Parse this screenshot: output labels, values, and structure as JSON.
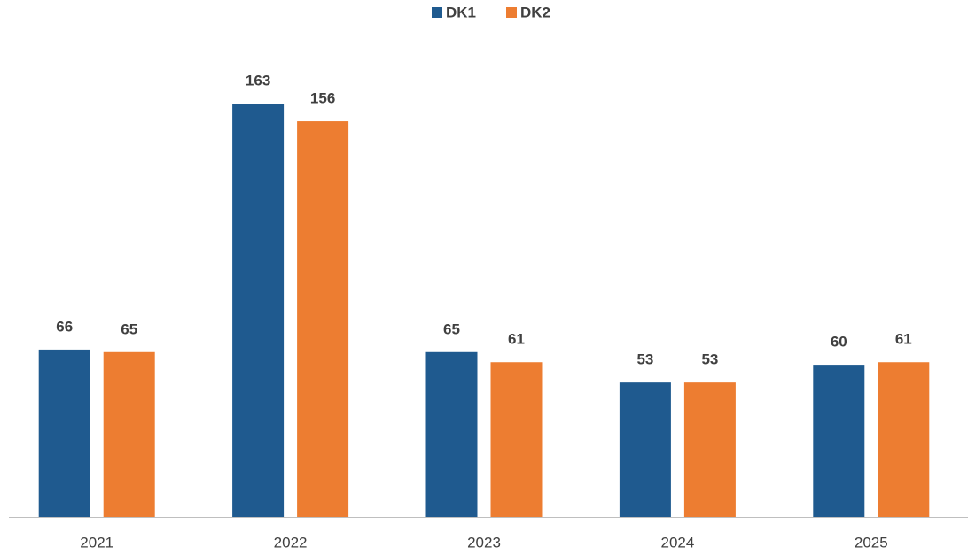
{
  "chart_data": {
    "type": "bar",
    "categories": [
      "2021",
      "2022",
      "2023",
      "2024",
      "2025"
    ],
    "series": [
      {
        "name": "DK1",
        "color": "#1f5a8f",
        "values": [
          66,
          163,
          65,
          53,
          60
        ]
      },
      {
        "name": "DK2",
        "color": "#ed7d31",
        "values": [
          65,
          156,
          61,
          53,
          61
        ]
      }
    ],
    "legend": "top"
  }
}
